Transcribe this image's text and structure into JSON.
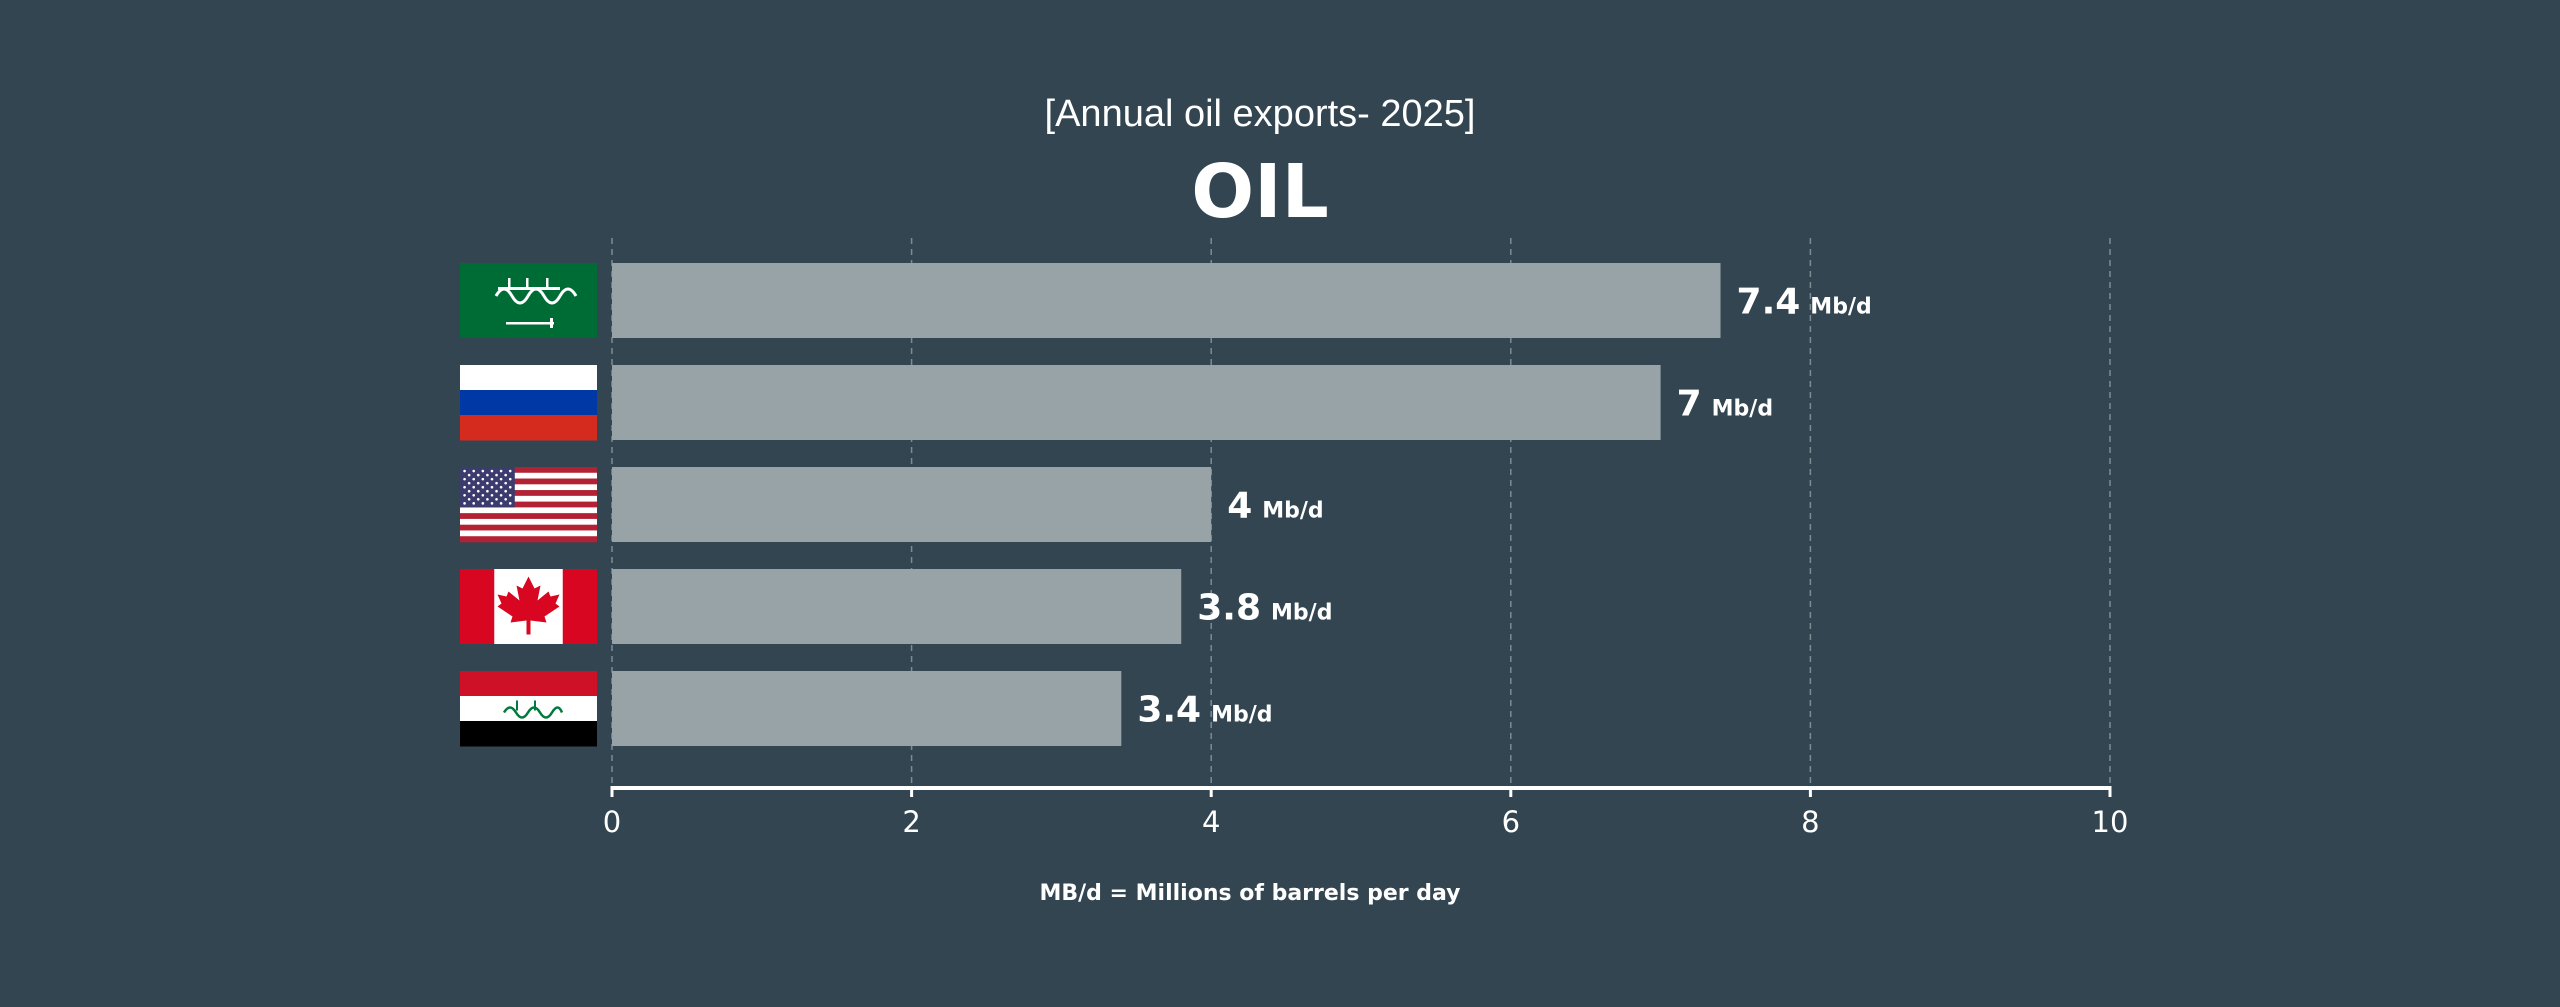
{
  "header": {
    "subtitle": "[Annual oil exports- 2025]",
    "title": "OIL"
  },
  "footnote": "MB/d = Millions of barrels per day",
  "colors": {
    "background": "#334550",
    "bar": "#98a3a8",
    "text": "#ffffff",
    "grid": "#7d8b93"
  },
  "chart_data": {
    "type": "bar",
    "orientation": "horizontal",
    "categories": [
      "Saudi Arabia",
      "Russia",
      "United States",
      "Canada",
      "Iraq"
    ],
    "category_icons": [
      "saudi-arabia-flag",
      "russia-flag",
      "usa-flag",
      "canada-flag",
      "iraq-flag"
    ],
    "values": [
      7.4,
      7,
      4,
      3.8,
      3.4
    ],
    "value_labels": [
      "7.4",
      "7",
      "4",
      "3.8",
      "3.4"
    ],
    "unit_label": "Mb/d",
    "xlim": [
      0,
      10
    ],
    "xticks": [
      0,
      2,
      4,
      6,
      8,
      10
    ],
    "xtick_labels": [
      "0",
      "2",
      "4",
      "6",
      "8",
      "10"
    ],
    "grid": "vertical dashed"
  }
}
